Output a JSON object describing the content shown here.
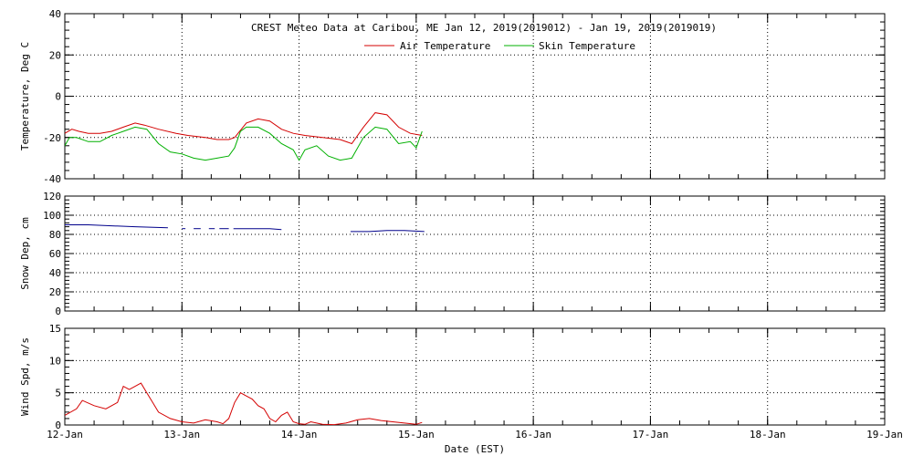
{
  "chart_data": {
    "title": "CREST Meteo Data at Caribou, ME   Jan 12, 2019(2019012) - Jan 19, 2019(2019019)",
    "x_label": "Date (EST)",
    "x_ticks": [
      "12-Jan",
      "13-Jan",
      "14-Jan",
      "15-Jan",
      "16-Jan",
      "17-Jan",
      "18-Jan",
      "19-Jan"
    ],
    "x_range_days": [
      0,
      7
    ],
    "grid": true,
    "legend_position": "top",
    "panels": [
      {
        "id": "temperature",
        "type": "line",
        "ylabel": "Temperature, Deg C",
        "ylim": [
          -40,
          40
        ],
        "yticks": [
          -40,
          -20,
          0,
          20,
          40
        ],
        "series": [
          {
            "name": "Air Temperature",
            "color": "#d40000",
            "x": [
              0,
              0.06,
              0.12,
              0.2,
              0.3,
              0.4,
              0.5,
              0.6,
              0.68,
              0.8,
              0.95,
              1.05,
              1.2,
              1.3,
              1.4,
              1.45,
              1.55,
              1.65,
              1.75,
              1.85,
              1.95,
              2.05,
              2.2,
              2.35,
              2.45,
              2.55,
              2.65,
              2.75,
              2.85,
              2.95,
              3.05
            ],
            "y": [
              -18,
              -16,
              -17,
              -18,
              -18,
              -17,
              -15,
              -13,
              -14,
              -16,
              -18,
              -19,
              -20,
              -21,
              -21,
              -20,
              -13,
              -11,
              -12,
              -16,
              -18,
              -19,
              -20,
              -21,
              -23,
              -15,
              -8,
              -9,
              -15,
              -18,
              -19
            ]
          },
          {
            "name": "Skin Temperature",
            "color": "#00b000",
            "x": [
              0,
              0.04,
              0.1,
              0.2,
              0.3,
              0.4,
              0.5,
              0.6,
              0.7,
              0.8,
              0.9,
              1.0,
              1.1,
              1.2,
              1.3,
              1.4,
              1.45,
              1.5,
              1.55,
              1.65,
              1.75,
              1.85,
              1.95,
              2.0,
              2.05,
              2.15,
              2.25,
              2.35,
              2.45,
              2.55,
              2.65,
              2.75,
              2.85,
              2.95,
              3.0,
              3.05
            ],
            "y": [
              -24,
              -20,
              -20,
              -22,
              -22,
              -19,
              -17,
              -15,
              -16,
              -23,
              -27,
              -28,
              -30,
              -31,
              -30,
              -29,
              -25,
              -17,
              -15,
              -15,
              -18,
              -23,
              -26,
              -31,
              -26,
              -24,
              -29,
              -31,
              -30,
              -20,
              -15,
              -16,
              -23,
              -22,
              -25,
              -17
            ]
          }
        ]
      },
      {
        "id": "snow",
        "type": "line",
        "ylabel": "Snow Dep, cm",
        "ylim": [
          0,
          120
        ],
        "yticks": [
          0,
          20,
          40,
          60,
          80,
          100,
          120
        ],
        "series": [
          {
            "color": "#00008b",
            "segments": [
              {
                "x": [
                  0,
                  0.2,
                  0.4,
                  0.6,
                  0.88
                ],
                "y": [
                  90,
                  90,
                  89,
                  88,
                  87
                ]
              },
              {
                "x": [
                  1.0,
                  1.03
                ],
                "y": [
                  86,
                  86
                ]
              },
              {
                "x": [
                  1.1,
                  1.16
                ],
                "y": [
                  86,
                  86
                ]
              },
              {
                "x": [
                  1.23,
                  1.28
                ],
                "y": [
                  86,
                  86
                ]
              },
              {
                "x": [
                  1.32,
                  1.4
                ],
                "y": [
                  86,
                  86
                ]
              },
              {
                "x": [
                  1.44,
                  1.6,
                  1.75,
                  1.85
                ],
                "y": [
                  86,
                  86,
                  86,
                  85
                ]
              },
              {
                "x": [
                  2.44,
                  2.6,
                  2.75,
                  2.9,
                  3.07
                ],
                "y": [
                  83,
                  83,
                  84,
                  84,
                  83
                ]
              }
            ]
          }
        ]
      },
      {
        "id": "wind",
        "type": "line",
        "ylabel": "Wind Spd, m/s",
        "ylim": [
          0,
          15
        ],
        "yticks": [
          0,
          5,
          10,
          15
        ],
        "series": [
          {
            "color": "#d40000",
            "x": [
              0,
              0.1,
              0.15,
              0.25,
              0.35,
              0.45,
              0.5,
              0.55,
              0.6,
              0.65,
              0.7,
              0.75,
              0.8,
              0.9,
              1.0,
              1.1,
              1.2,
              1.3,
              1.35,
              1.4,
              1.45,
              1.5,
              1.55,
              1.6,
              1.65,
              1.7,
              1.75,
              1.8,
              1.85,
              1.9,
              1.95,
              2.0,
              2.05,
              2.1,
              2.2,
              2.3,
              2.4,
              2.5,
              2.6,
              2.7,
              2.8,
              2.9,
              3.0,
              3.05
            ],
            "y": [
              1.5,
              2.5,
              3.8,
              3.0,
              2.5,
              3.5,
              6.0,
              5.5,
              6.0,
              6.5,
              5.0,
              3.5,
              2.0,
              1.0,
              0.5,
              0.3,
              0.8,
              0.5,
              0.2,
              1.0,
              3.5,
              5.0,
              4.5,
              4.0,
              3.0,
              2.5,
              1.0,
              0.5,
              1.5,
              2.0,
              0.5,
              0.2,
              0.1,
              0.5,
              0.1,
              0.05,
              0.3,
              0.8,
              1.0,
              0.7,
              0.5,
              0.3,
              0.1,
              0.4
            ]
          }
        ]
      }
    ]
  }
}
